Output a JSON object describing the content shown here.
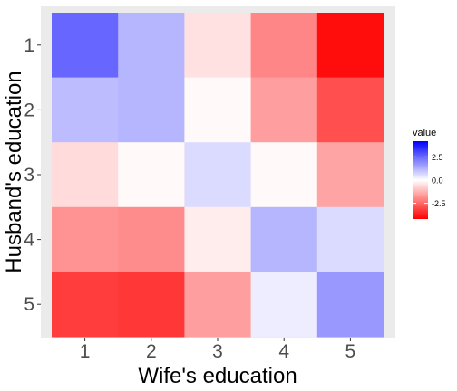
{
  "chart_data": {
    "type": "heatmap",
    "title": "",
    "xlabel": "Wife's education",
    "ylabel": "Husband's education",
    "x_categories": [
      "1",
      "2",
      "3",
      "4",
      "5"
    ],
    "y_categories": [
      "1",
      "2",
      "3",
      "4",
      "5"
    ],
    "y_order": "top-to-bottom",
    "values": [
      [
        2.5,
        1.2,
        -0.5,
        -2.0,
        -4.0
      ],
      [
        1.1,
        1.2,
        -0.1,
        -1.6,
        -2.9
      ],
      [
        -0.6,
        -0.1,
        0.6,
        -0.1,
        -1.5
      ],
      [
        -1.8,
        -1.9,
        -0.3,
        1.2,
        0.6
      ],
      [
        -3.2,
        -3.3,
        -1.6,
        0.3,
        1.7
      ]
    ],
    "grid": true,
    "legend": {
      "title": "value",
      "position": "right",
      "ticks": [
        2.5,
        0.0,
        -2.5
      ],
      "tick_labels": [
        "2.5",
        "0.0",
        "-2.5"
      ],
      "range": [
        -4.2,
        4.2
      ]
    },
    "colors": {
      "low": "#ff0000",
      "mid": "#ffffff",
      "high": "#0000ff",
      "panel_background": "#ebebeb"
    }
  }
}
